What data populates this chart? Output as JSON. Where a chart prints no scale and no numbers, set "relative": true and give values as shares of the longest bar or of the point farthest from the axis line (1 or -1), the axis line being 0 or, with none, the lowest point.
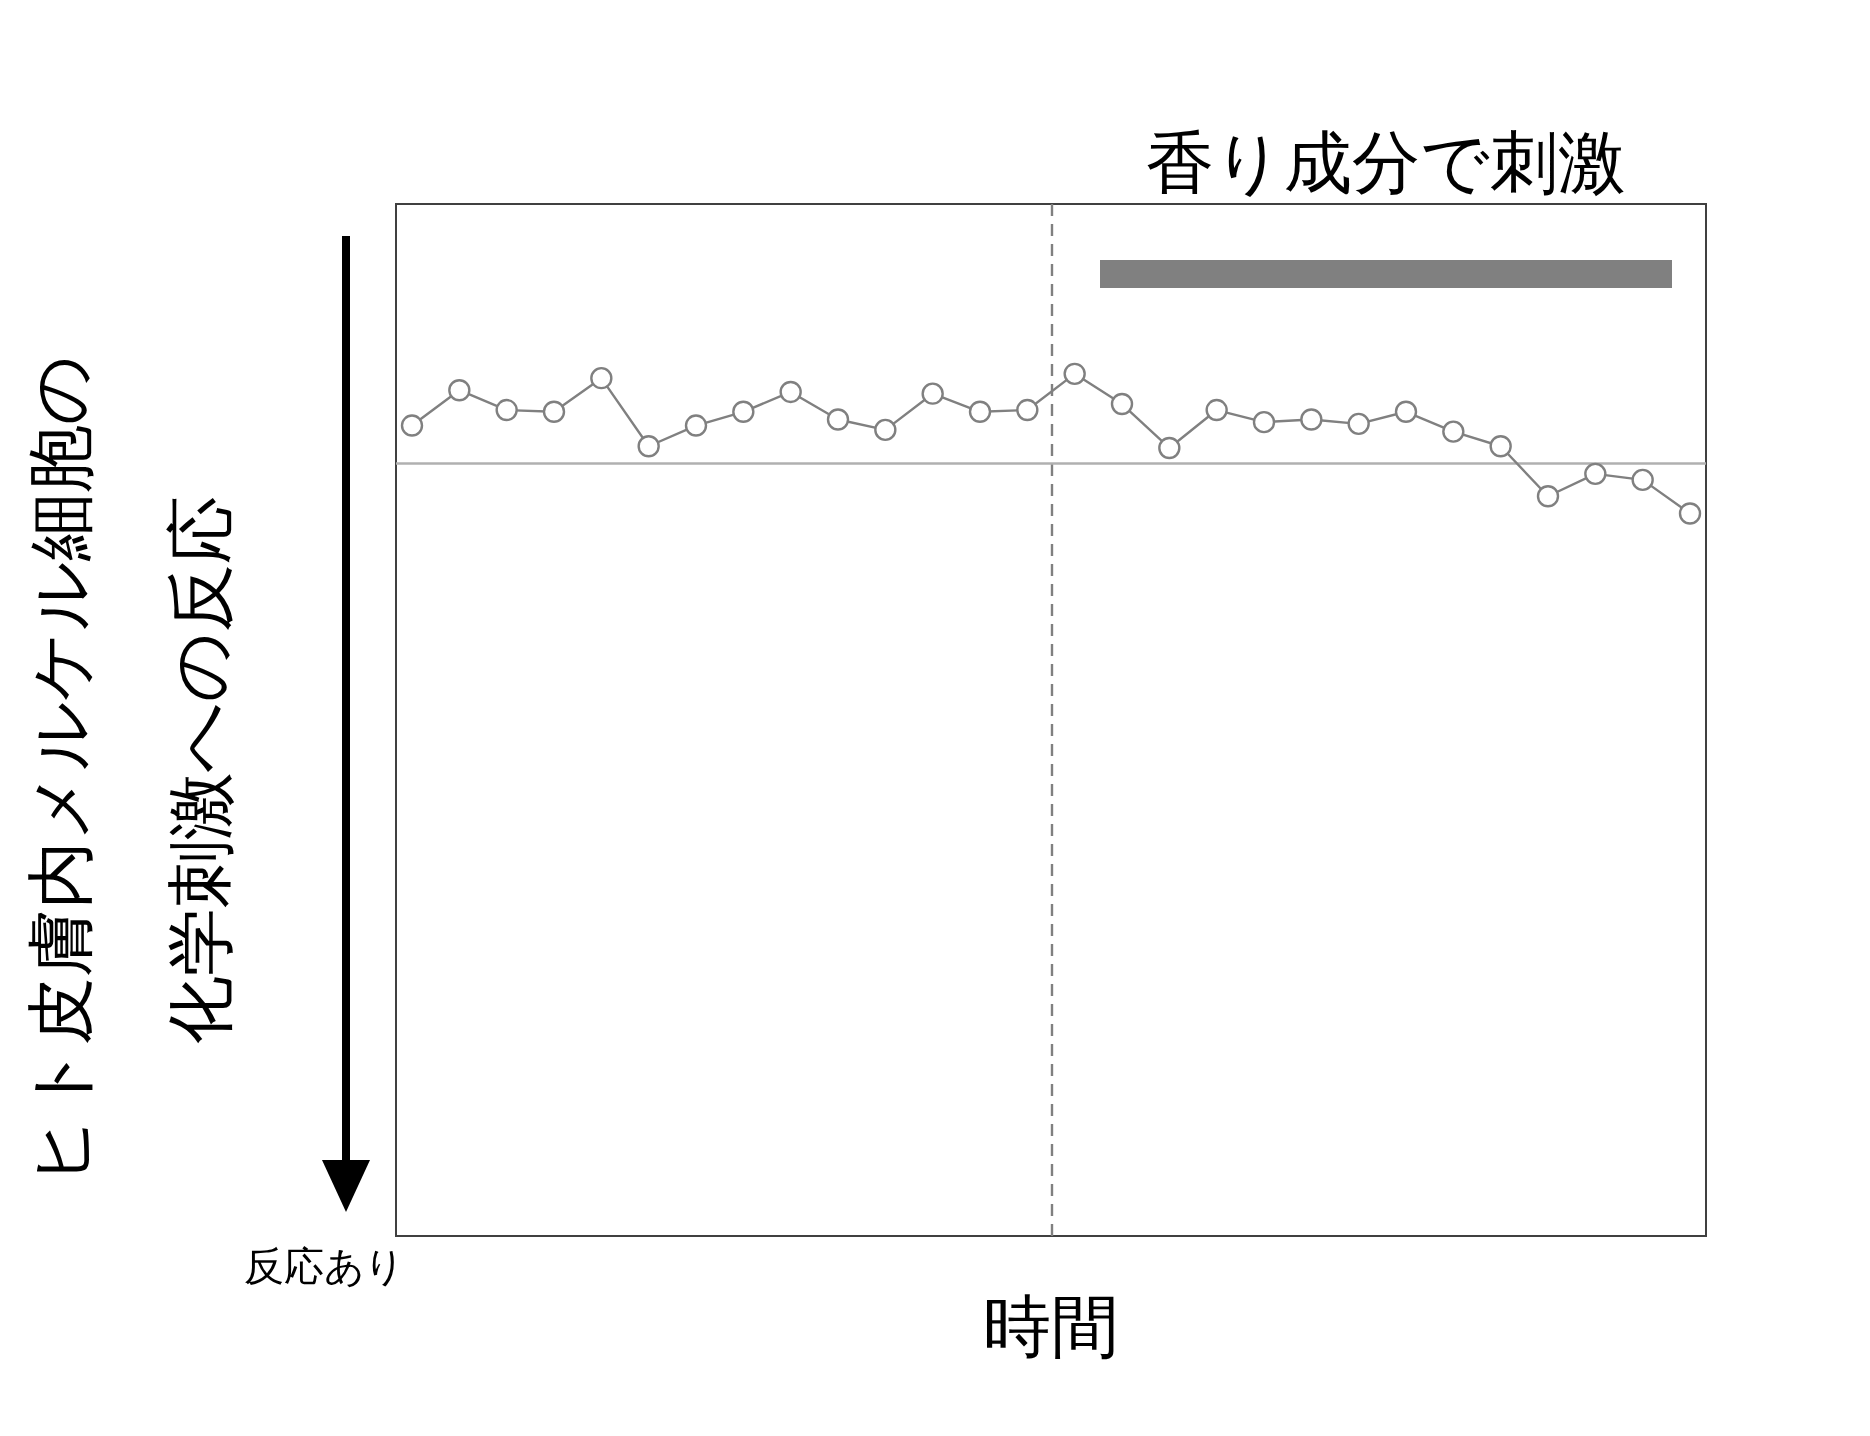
{
  "chart_data": {
    "type": "line",
    "relative": true,
    "xlabel": "時間",
    "ylabel": "ヒト皮膚内メルケル細胞の化学刺激への反応",
    "annotations": [
      "反応あり",
      "香り成分で刺激"
    ],
    "marker": "circle",
    "line_style": "solid",
    "categories": [
      null,
      null,
      null,
      null,
      null,
      null,
      null,
      null,
      null,
      null,
      null,
      null,
      null,
      null,
      null,
      null,
      null,
      null,
      null,
      null,
      null,
      null,
      null,
      null,
      null,
      null,
      null,
      null
    ],
    "series": [
      {
        "color": "#808080",
        "values": [
          0.94,
          0.981,
          0.958,
          0.956,
          0.995,
          0.916,
          0.94,
          0.956,
          0.979,
          0.947,
          0.935,
          0.977,
          0.956,
          0.958,
          1,
          0.965,
          0.914,
          0.958,
          0.944,
          0.947,
          0.942,
          0.956,
          0.933,
          0.916,
          0.858,
          0.884,
          0.877,
          0.838
        ]
      }
    ],
    "ref_lines": [
      {
        "axis": "y",
        "value": 0.896,
        "line_style": "solid",
        "color": "#b0b0b0"
      }
    ]
  }
}
